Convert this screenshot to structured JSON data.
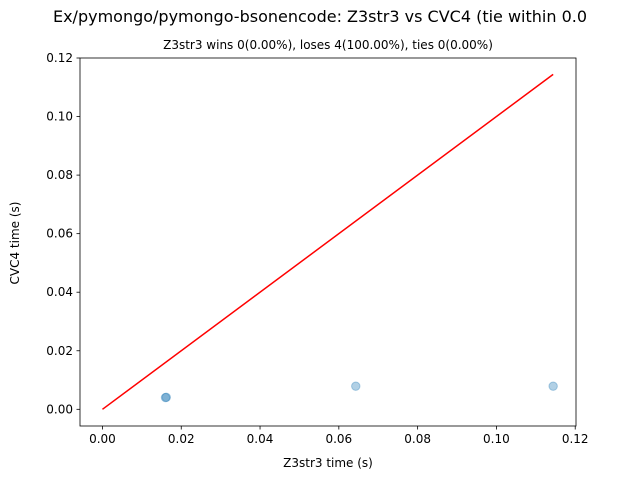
{
  "chart_data": {
    "type": "scatter",
    "title": "Ex/pymongo/pymongo-bsonencode: Z3str3 vs CVC4 (tie within 0.0",
    "subtitle": "Z3str3 wins 0(0.00%), loses 4(100.00%), ties 0(0.00%)",
    "xlabel": "Z3str3 time (s)",
    "ylabel": "CVC4 time (s)",
    "xlim": [
      -0.0057,
      0.1202
    ],
    "ylim": [
      -0.0057,
      0.12
    ],
    "xticks": [
      "0.00",
      "0.02",
      "0.04",
      "0.06",
      "0.08",
      "0.10",
      "0.12"
    ],
    "yticks": [
      "0.00",
      "0.02",
      "0.04",
      "0.06",
      "0.08",
      "0.10",
      "0.12"
    ],
    "grid": false,
    "series": [
      {
        "type": "scatter",
        "color": "#1f77b4",
        "alpha": 0.35,
        "points": [
          [
            0.016,
            0.004
          ],
          [
            0.0162,
            0.0041
          ],
          [
            0.0643,
            0.0079
          ],
          [
            0.1144,
            0.0079
          ]
        ]
      },
      {
        "type": "line",
        "color": "#ff0000",
        "points": [
          [
            0.0,
            0.0
          ],
          [
            0.1144,
            0.1144
          ]
        ]
      }
    ]
  }
}
